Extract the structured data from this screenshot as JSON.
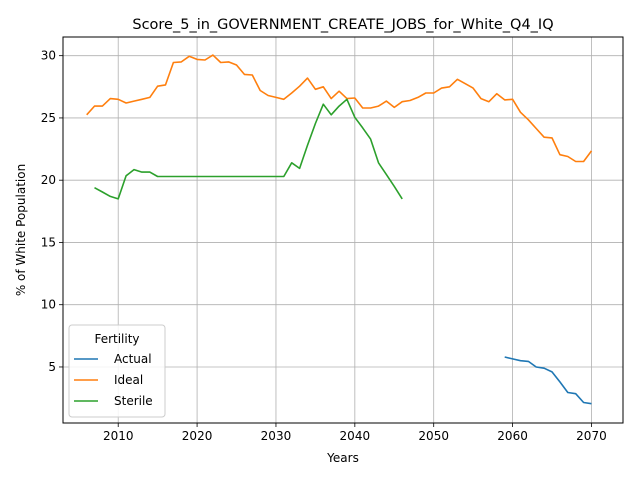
{
  "chart_data": {
    "type": "line",
    "title": "Score_5_in_GOVERNMENT_CREATE_JOBS_for_White_Q4_IQ",
    "xlabel": "Years",
    "ylabel": "% of White Population",
    "xlim": [
      2003,
      2074
    ],
    "ylim": [
      0.5,
      31.5
    ],
    "xticks": [
      2010,
      2020,
      2030,
      2040,
      2050,
      2060,
      2070
    ],
    "yticks": [
      5,
      10,
      15,
      20,
      25,
      30
    ],
    "grid": true,
    "legend": {
      "title": "Fertility",
      "position": "lower-left"
    },
    "series": [
      {
        "name": "Actual",
        "color": "#1f77b4",
        "x": [
          2059,
          2060,
          2061,
          2062,
          2063,
          2064,
          2065,
          2066,
          2067,
          2068,
          2069,
          2070
        ],
        "y": [
          5.8,
          5.65,
          5.5,
          5.45,
          5.0,
          4.9,
          4.6,
          3.8,
          2.95,
          2.85,
          2.15,
          2.05
        ]
      },
      {
        "name": "Ideal",
        "color": "#ff7f0e",
        "x": [
          2006,
          2007,
          2008,
          2009,
          2010,
          2011,
          2012,
          2013,
          2014,
          2015,
          2016,
          2017,
          2018,
          2019,
          2020,
          2021,
          2022,
          2023,
          2024,
          2025,
          2026,
          2027,
          2028,
          2029,
          2030,
          2031,
          2032,
          2033,
          2034,
          2035,
          2036,
          2037,
          2038,
          2039,
          2040,
          2041,
          2042,
          2043,
          2044,
          2045,
          2046,
          2047,
          2048,
          2049,
          2050,
          2051,
          2052,
          2053,
          2054,
          2055,
          2056,
          2057,
          2058,
          2059,
          2060,
          2061,
          2062,
          2063,
          2064,
          2065,
          2066,
          2067,
          2068,
          2069,
          2070
        ],
        "y": [
          25.25,
          25.95,
          25.95,
          26.55,
          26.5,
          26.2,
          26.35,
          26.5,
          26.65,
          27.55,
          27.65,
          29.45,
          29.5,
          29.95,
          29.7,
          29.65,
          30.05,
          29.45,
          29.5,
          29.25,
          28.5,
          28.45,
          27.2,
          26.8,
          26.65,
          26.5,
          27.0,
          27.55,
          28.2,
          27.3,
          27.5,
          26.55,
          27.15,
          26.55,
          26.6,
          25.8,
          25.8,
          25.95,
          26.35,
          25.85,
          26.3,
          26.4,
          26.65,
          27.0,
          27.0,
          27.4,
          27.5,
          28.1,
          27.75,
          27.4,
          26.55,
          26.3,
          26.95,
          26.45,
          26.5,
          25.45,
          24.85,
          24.15,
          23.45,
          23.4,
          22.05,
          21.9,
          21.5,
          21.5,
          22.35
        ]
      },
      {
        "name": "Sterile",
        "color": "#2ca02c",
        "x": [
          2007,
          2008,
          2009,
          2010,
          2011,
          2012,
          2013,
          2014,
          2015,
          2016,
          2017,
          2018,
          2019,
          2020,
          2021,
          2022,
          2023,
          2024,
          2025,
          2026,
          2027,
          2028,
          2029,
          2030,
          2031,
          2032,
          2033,
          2034,
          2035,
          2036,
          2037,
          2038,
          2039,
          2040,
          2041,
          2042,
          2043,
          2044,
          2045,
          2046
        ],
        "y": [
          19.4,
          19.05,
          18.7,
          18.5,
          20.35,
          20.85,
          20.65,
          20.65,
          20.3,
          20.3,
          20.3,
          20.3,
          20.3,
          20.3,
          20.3,
          20.3,
          20.3,
          20.3,
          20.3,
          20.3,
          20.3,
          20.3,
          20.3,
          20.3,
          20.3,
          21.4,
          20.95,
          22.8,
          24.55,
          26.1,
          25.25,
          25.95,
          26.5,
          25.05,
          24.2,
          23.3,
          21.4,
          20.45,
          19.5,
          18.5
        ]
      }
    ]
  }
}
